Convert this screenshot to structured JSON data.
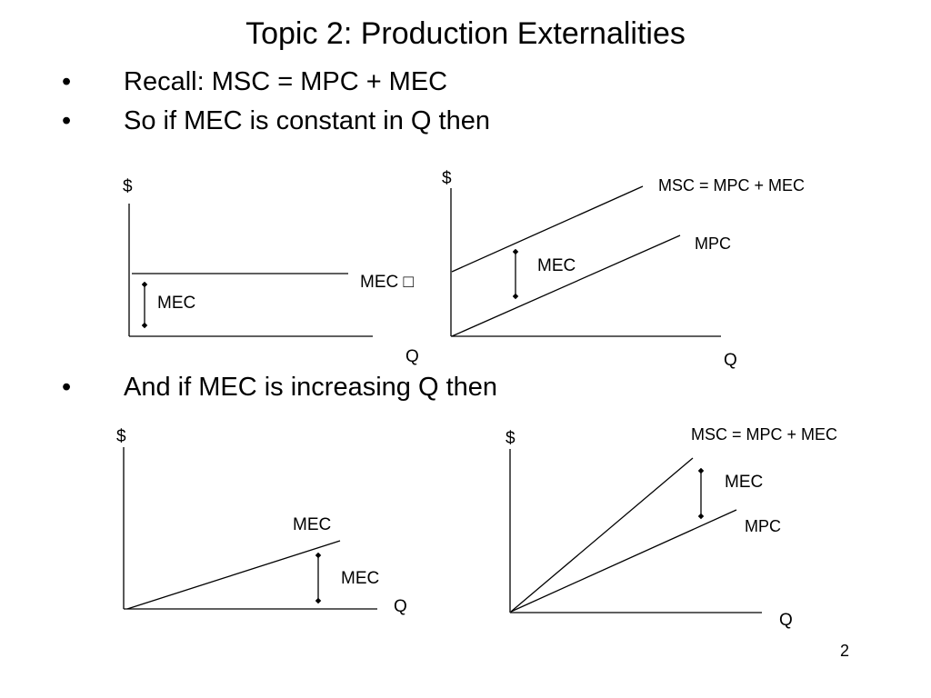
{
  "title": "Topic 2: Production Externalities",
  "bullets": [
    {
      "marker": "•",
      "text": "Recall: MSC = MPC + MEC"
    },
    {
      "marker": "•",
      "text": "So if MEC is constant in Q then"
    },
    {
      "marker": "•",
      "text": "And if MEC is increasing Q then"
    }
  ],
  "diagrams": {
    "top_left": {
      "y_axis": "$",
      "x_axis": "Q",
      "curve_label": "MEC □",
      "gap_label": "MEC"
    },
    "top_right": {
      "y_axis": "$",
      "x_axis": "Q",
      "upper_label": "MSC = MPC + MEC",
      "lower_label": "MPC",
      "gap_label": "MEC"
    },
    "bottom_left": {
      "y_axis": "$",
      "x_axis": "Q",
      "curve_label": "MEC",
      "gap_label": "MEC"
    },
    "bottom_right": {
      "y_axis": "$",
      "x_axis": "Q",
      "upper_label": "MSC = MPC + MEC",
      "lower_label": "MPC",
      "gap_label": "MEC"
    }
  },
  "page_number": "2"
}
